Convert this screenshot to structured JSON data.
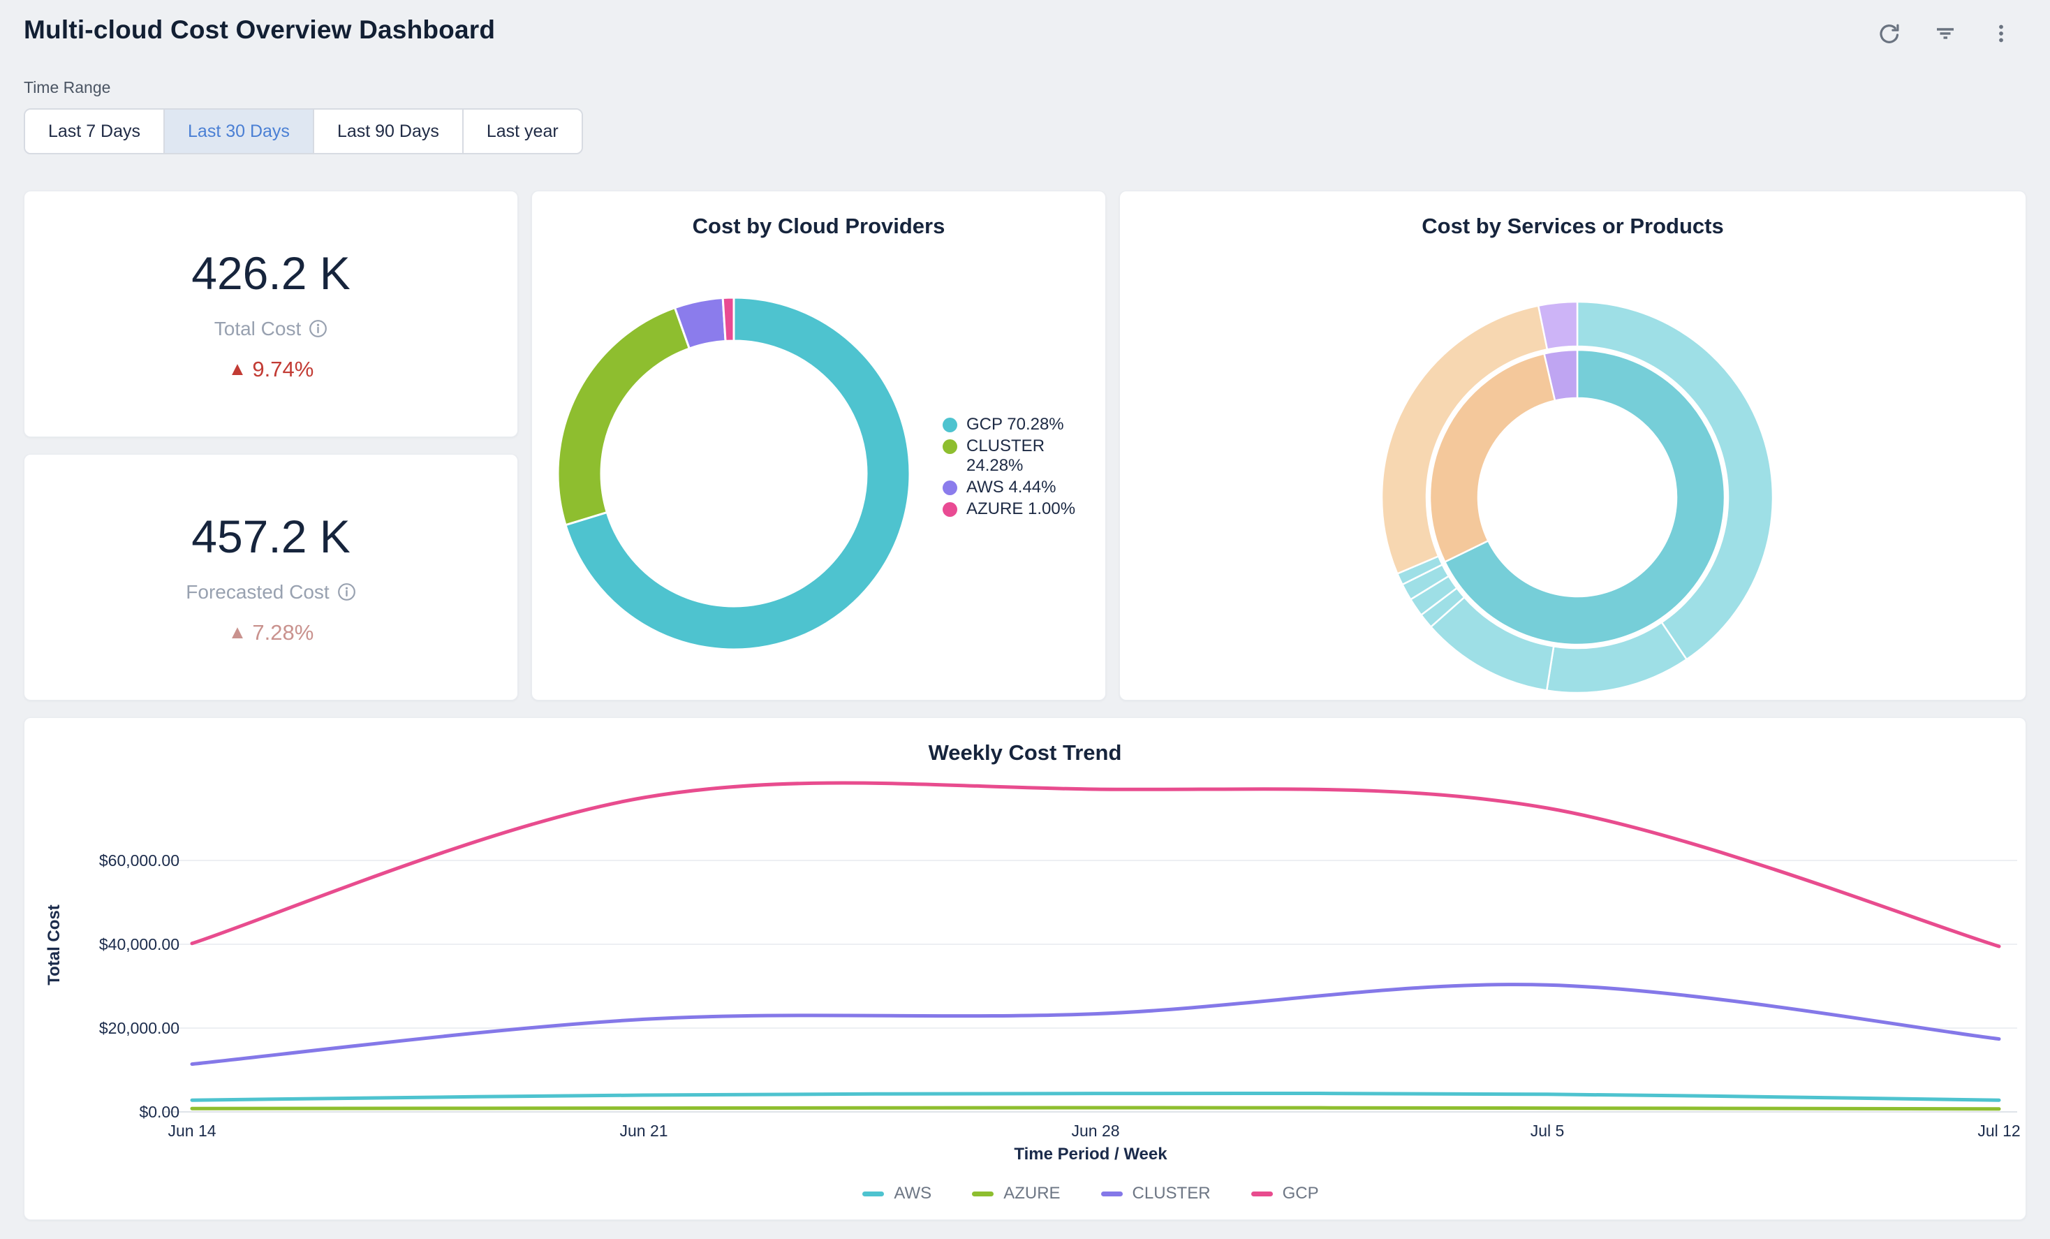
{
  "header": {
    "title": "Multi-cloud Cost Overview Dashboard",
    "icons": [
      {
        "name": "refresh-icon"
      },
      {
        "name": "filter-icon"
      },
      {
        "name": "kebab-menu-icon"
      }
    ],
    "icon_color": "#6a7380"
  },
  "time_range": {
    "label": "Time Range",
    "options": [
      "Last 7 Days",
      "Last 30 Days",
      "Last 90 Days",
      "Last year"
    ],
    "selected": "Last 30 Days",
    "selected_text_color": "#4a7fd4",
    "selected_bg": "#dfe7f2"
  },
  "kpis": [
    {
      "value": "426.2 K",
      "label": "Total Cost",
      "info_icon": "info-icon",
      "arrow": "▲",
      "delta": "9.74%",
      "direction": "up",
      "delta_color": "#c23b34"
    },
    {
      "value": "457.2 K",
      "label": "Forecasted Cost",
      "info_icon": "info-icon",
      "arrow": "▲",
      "delta": "7.28%",
      "direction": "up",
      "delta_color": "#c9928e"
    }
  ],
  "chart_data": [
    {
      "id": "providers-donut",
      "type": "pie",
      "variant": "donut",
      "title": "Cost by Cloud Providers",
      "segments": [
        {
          "label": "GCP",
          "value": 70.28,
          "color": "#4ec3cf"
        },
        {
          "label": "CLUSTER",
          "value": 24.28,
          "color": "#8ebe2f"
        },
        {
          "label": "AWS",
          "value": 4.44,
          "color": "#8b7cec"
        },
        {
          "label": "AZURE",
          "value": 1.0,
          "color": "#e94b93"
        }
      ],
      "legend": [
        "GCP 70.28%",
        "CLUSTER 24.28%",
        "AWS 4.44%",
        "AZURE 1.00%"
      ],
      "legend_position": "right",
      "start_angle_deg": 0,
      "clockwise": true
    },
    {
      "id": "services-sunburst",
      "type": "pie",
      "variant": "sunburst",
      "title": "Cost by Services or Products",
      "rings": {
        "outer": [
          {
            "color": "teal",
            "from": 0,
            "to": 146
          },
          {
            "color": "teal",
            "from": 146,
            "to": 189
          },
          {
            "color": "teal",
            "from": 189,
            "to": 228.5
          },
          {
            "color": "teal",
            "from": 228.5,
            "to": 233
          },
          {
            "color": "teal",
            "from": 233,
            "to": 238.5
          },
          {
            "color": "teal",
            "from": 238.5,
            "to": 243.5
          },
          {
            "color": "teal",
            "from": 243.5,
            "to": 247
          },
          {
            "color": "peach",
            "from": 247,
            "to": 348.5
          },
          {
            "color": "purple",
            "from": 348.5,
            "to": 360
          }
        ],
        "inner": [
          {
            "color": "teal",
            "from": 0,
            "to": 244
          },
          {
            "color": "peach",
            "from": 244,
            "to": 347
          },
          {
            "color": "purple",
            "from": 347,
            "to": 360
          }
        ]
      },
      "palette": {
        "teal_outer": "#9edfe6",
        "teal_inner": "#76ced8",
        "peach_outer": "#f7d7b1",
        "peach_inner": "#f4c89b",
        "purple_outer": "#cdb4f7",
        "purple_inner": "#bfa5f2"
      }
    },
    {
      "id": "weekly-trend",
      "type": "line",
      "title": "Weekly Cost Trend",
      "x": [
        "Jun 14",
        "Jun 21",
        "Jun 28",
        "Jul 5",
        "Jul 12"
      ],
      "xlabel": "Time Period / Week",
      "ylabel": "Total Cost",
      "ylim": [
        0,
        80000
      ],
      "grid": true,
      "yticks": [
        {
          "label": "$0.00",
          "value": 0
        },
        {
          "label": "$20,000.00",
          "value": 20000
        },
        {
          "label": "$40,000.00",
          "value": 40000
        },
        {
          "label": "$60,000.00",
          "value": 60000
        }
      ],
      "series": [
        {
          "name": "AWS",
          "color": "#4ec3cf",
          "values": [
            2800,
            4000,
            4400,
            4200,
            2800
          ]
        },
        {
          "name": "AZURE",
          "color": "#8ebe2f",
          "values": [
            800,
            900,
            1000,
            900,
            700
          ]
        },
        {
          "name": "CLUSTER",
          "color": "#8478e8",
          "values": [
            11400,
            22100,
            23400,
            30300,
            17400
          ]
        },
        {
          "name": "GCP",
          "color": "#e84c8e",
          "values": [
            40200,
            75000,
            77000,
            72500,
            39500
          ]
        }
      ],
      "legend_position": "bottom"
    }
  ]
}
